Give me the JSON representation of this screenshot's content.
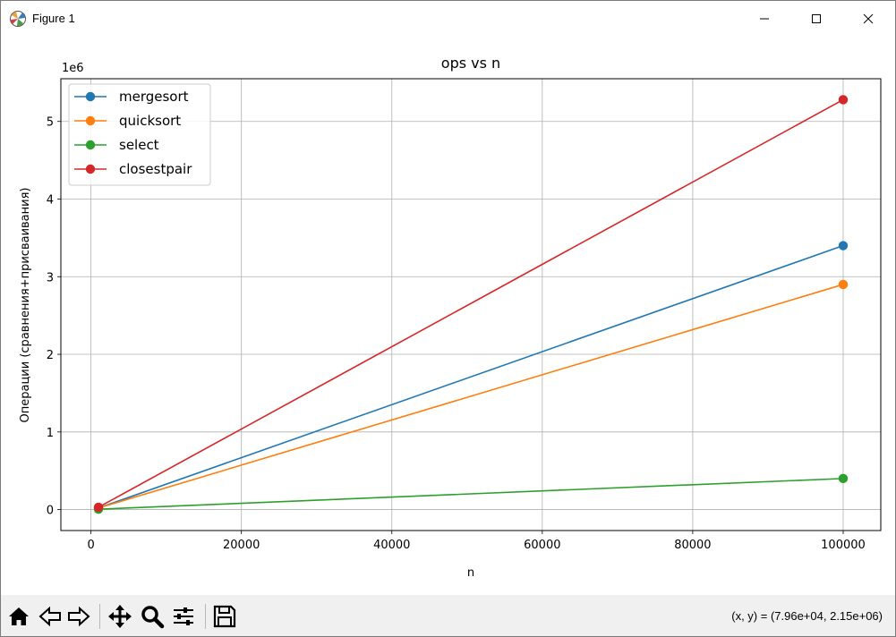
{
  "window": {
    "title": "Figure 1"
  },
  "toolbar": {
    "buttons": [
      "home-icon",
      "back-icon",
      "forward-icon",
      "pan-icon",
      "zoom-icon",
      "configure-subplots-icon",
      "save-icon"
    ],
    "coords_text": "(x, y) = (7.96e+04, 2.15e+06)"
  },
  "chart_data": {
    "type": "line",
    "title": "ops vs n",
    "xlabel": "n",
    "ylabel": "Операции (сравнения+присваивания)",
    "y_offset_label": "1e6",
    "xlim": [
      -4000,
      105000
    ],
    "ylim": [
      -0.27,
      5.55
    ],
    "xticks": [
      0,
      20000,
      40000,
      60000,
      80000,
      100000
    ],
    "xtick_labels": [
      "0",
      "20000",
      "40000",
      "60000",
      "80000",
      "100000"
    ],
    "yticks": [
      0,
      1,
      2,
      3,
      4,
      5
    ],
    "ytick_labels": [
      "0",
      "1",
      "2",
      "3",
      "4",
      "5"
    ],
    "grid": true,
    "legend_position": "upper-left",
    "series": [
      {
        "name": "mergesort",
        "color": "#1f77b4",
        "x": [
          1000,
          100000
        ],
        "y": [
          0.02,
          3.4
        ]
      },
      {
        "name": "quicksort",
        "color": "#ff7f0e",
        "x": [
          1000,
          100000
        ],
        "y": [
          0.02,
          2.9
        ]
      },
      {
        "name": "select",
        "color": "#2ca02c",
        "x": [
          1000,
          100000
        ],
        "y": [
          0.005,
          0.4
        ]
      },
      {
        "name": "closestpair",
        "color": "#d62728",
        "x": [
          1000,
          100000
        ],
        "y": [
          0.03,
          5.28
        ]
      }
    ]
  }
}
